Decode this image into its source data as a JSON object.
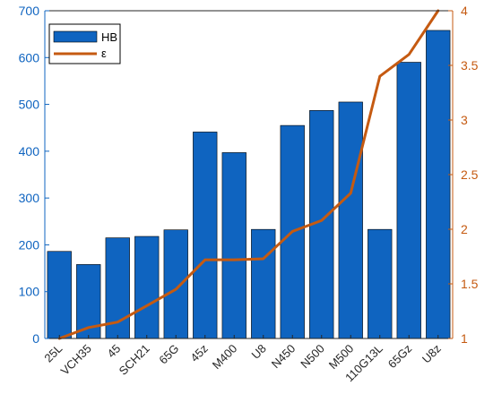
{
  "chart_data": {
    "type": "bar",
    "categories": [
      "25L",
      "VCH35",
      "45",
      "SCH21",
      "65G",
      "45z",
      "M400",
      "U8",
      "N450",
      "N500",
      "M500",
      "110G13L",
      "65Gz",
      "U8z"
    ],
    "series": [
      {
        "name": "HB",
        "type": "bar",
        "axis": "left",
        "color": "#0f64c0",
        "values": [
          186,
          158,
          215,
          218,
          232,
          441,
          397,
          233,
          455,
          487,
          505,
          233,
          590,
          658
        ]
      },
      {
        "name": "ε",
        "type": "line",
        "axis": "right",
        "color": "#c55a11",
        "values": [
          1.0,
          1.1,
          1.15,
          1.3,
          1.45,
          1.72,
          1.72,
          1.73,
          1.98,
          2.08,
          2.33,
          3.4,
          3.6,
          4.0
        ]
      }
    ],
    "left_axis": {
      "ylim": [
        0,
        700
      ],
      "ticks": [
        0,
        100,
        200,
        300,
        400,
        500,
        600,
        700
      ],
      "color": "#0f64c0"
    },
    "right_axis": {
      "ylim": [
        1,
        4
      ],
      "ticks": [
        "1",
        "1.5",
        "2",
        "2.5",
        "3",
        "3.5",
        "4"
      ],
      "color": "#c55a11"
    },
    "title": "",
    "xlabel": "",
    "ylabel": "",
    "grid": false,
    "legend": {
      "position": "top-left",
      "entries": [
        "HB",
        "ε"
      ]
    }
  }
}
